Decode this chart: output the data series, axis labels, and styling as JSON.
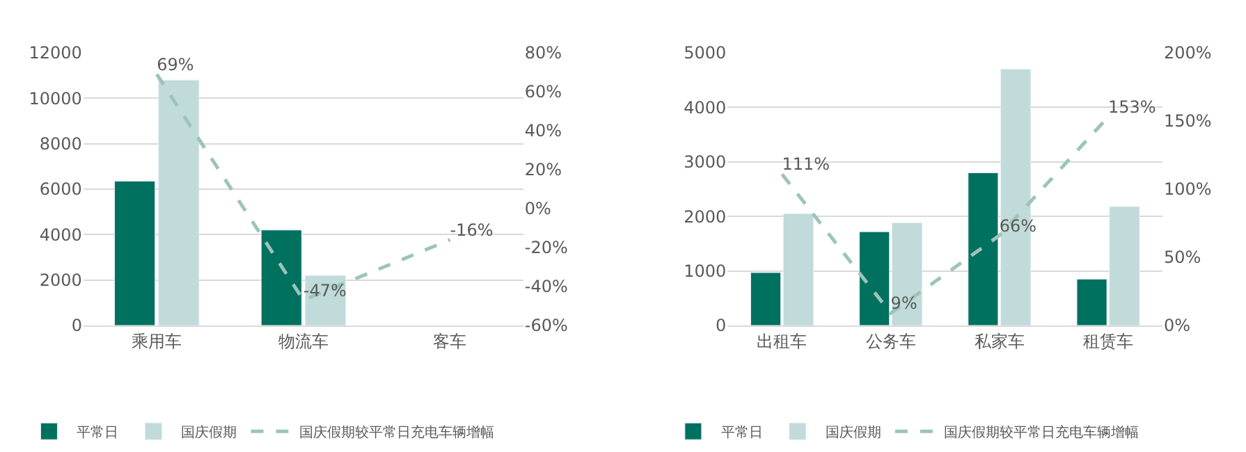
{
  "chart_data": [
    {
      "type": "bar",
      "categories": [
        "乘用车",
        "物流车",
        "客车"
      ],
      "series": [
        {
          "name": "平常日",
          "color": "#00705f",
          "values": [
            6350,
            4200,
            null
          ]
        },
        {
          "name": "国庆假期",
          "color": "#c0dbd9",
          "values": [
            10800,
            2200,
            null
          ]
        },
        {
          "name": "国庆假期较平常日充电车辆增幅",
          "type": "line",
          "axis": "y2",
          "color": "#9cc4b8",
          "line_style": "dashed",
          "values": [
            69,
            -47,
            -16
          ],
          "value_labels": [
            "69%",
            "-47%",
            "-16%"
          ]
        }
      ],
      "ylim": [
        0,
        12000
      ],
      "yticks": [
        0,
        2000,
        4000,
        6000,
        8000,
        10000,
        12000
      ],
      "y2lim": [
        -60,
        80
      ],
      "y2ticks": [
        {
          "value": -60,
          "label": "-60%"
        },
        {
          "value": -40,
          "label": "-40%"
        },
        {
          "value": -20,
          "label": "-20%"
        },
        {
          "value": 0,
          "label": "0%"
        },
        {
          "value": 20,
          "label": "20%"
        },
        {
          "value": 40,
          "label": "40%"
        },
        {
          "value": 60,
          "label": "60%"
        },
        {
          "value": 80,
          "label": "80%"
        }
      ],
      "grid": "y",
      "legend": "bottom"
    },
    {
      "type": "bar",
      "categories": [
        "出租车",
        "公务车",
        "私家车",
        "租赁车"
      ],
      "series": [
        {
          "name": "平常日",
          "color": "#00705f",
          "values": [
            970,
            1720,
            2800,
            850
          ]
        },
        {
          "name": "国庆假期",
          "color": "#c0dbd9",
          "values": [
            2050,
            1880,
            4700,
            2180
          ]
        },
        {
          "name": "国庆假期较平常日充电车辆增幅",
          "type": "line",
          "axis": "y2",
          "color": "#9cc4b8",
          "line_style": "dashed",
          "values": [
            111,
            9,
            66,
            153
          ],
          "value_labels": [
            "111%",
            "9%",
            "66%",
            "153%"
          ]
        }
      ],
      "ylim": [
        0,
        5000
      ],
      "yticks": [
        0,
        1000,
        2000,
        3000,
        4000,
        5000
      ],
      "y2lim": [
        0,
        200
      ],
      "y2ticks": [
        {
          "value": 0,
          "label": "0%"
        },
        {
          "value": 50,
          "label": "50%"
        },
        {
          "value": 100,
          "label": "100%"
        },
        {
          "value": 150,
          "label": "150%"
        },
        {
          "value": 200,
          "label": "200%"
        }
      ],
      "grid": "y",
      "legend": "bottom"
    }
  ]
}
